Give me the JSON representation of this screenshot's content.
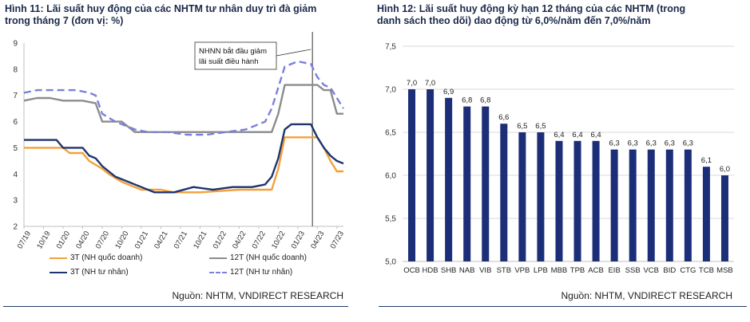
{
  "figure_left": {
    "title_line1": "Hình 11: Lãi suất huy động của các NHTM tư nhân duy trì đà giảm",
    "title_line2": "trong tháng 7 (đơn vị: %)",
    "source": "Nguồn: NHTM, VNDIRECT RESEARCH",
    "annotation_line1": "NHNN bắt đầu giảm",
    "annotation_line2": "lãi suất điều hành"
  },
  "figure_right": {
    "title_line1": "Hình 12: Lãi suất huy động kỳ hạn 12 tháng của các NHTM  (trong",
    "title_line2": "danh sách theo dõi) dao động từ 6,0%/năm đến 7,0%/năm",
    "source": "Nguồn: NHTM, VNDIRECT RESEARCH"
  },
  "colors": {
    "orange": "#f4a03a",
    "gray": "#8c8c8c",
    "navy": "#1d3470",
    "dashed_blue": "#7b7fdc",
    "bar": "#1d2e78",
    "grid": "#d9d9d9",
    "title": "#1b2a4a"
  },
  "chart_data": [
    {
      "type": "line",
      "x_ticks": [
        "07/19",
        "10/19",
        "01/20",
        "04/20",
        "07/20",
        "10/20",
        "01/21",
        "04/21",
        "07/21",
        "10/21",
        "01/22",
        "04/22",
        "07/22",
        "10/22",
        "01/23",
        "04/23",
        "07/23"
      ],
      "x_start": "07/19",
      "x_end": "08/23",
      "ylim": [
        2,
        9
      ],
      "yticks": [
        2,
        3,
        4,
        5,
        6,
        7,
        8,
        9
      ],
      "grid": false,
      "event_marker": "03/23",
      "legend_position": "bottom",
      "series": [
        {
          "name": "3T (NH quốc doanh)",
          "style": "solid",
          "color": "orange",
          "points": [
            [
              "07/19",
              5.0
            ],
            [
              "01/20",
              5.0
            ],
            [
              "02/20",
              4.8
            ],
            [
              "04/20",
              4.8
            ],
            [
              "05/20",
              4.5
            ],
            [
              "07/20",
              4.2
            ],
            [
              "08/20",
              4.0
            ],
            [
              "10/20",
              3.7
            ],
            [
              "12/20",
              3.5
            ],
            [
              "01/21",
              3.4
            ],
            [
              "04/21",
              3.4
            ],
            [
              "06/21",
              3.3
            ],
            [
              "10/21",
              3.3
            ],
            [
              "04/22",
              3.4
            ],
            [
              "09/22",
              3.4
            ],
            [
              "10/22",
              4.2
            ],
            [
              "11/22",
              5.4
            ],
            [
              "03/23",
              5.4
            ],
            [
              "04/23",
              5.4
            ],
            [
              "05/23",
              5.0
            ],
            [
              "06/23",
              4.5
            ],
            [
              "07/23",
              4.1
            ],
            [
              "08/23",
              4.1
            ]
          ]
        },
        {
          "name": "12T (NH quốc doanh)",
          "style": "solid",
          "color": "gray",
          "points": [
            [
              "07/19",
              6.8
            ],
            [
              "09/19",
              6.9
            ],
            [
              "11/19",
              6.9
            ],
            [
              "01/20",
              6.8
            ],
            [
              "04/20",
              6.8
            ],
            [
              "06/20",
              6.7
            ],
            [
              "07/20",
              6.0
            ],
            [
              "10/20",
              6.0
            ],
            [
              "12/20",
              5.6
            ],
            [
              "04/21",
              5.6
            ],
            [
              "07/21",
              5.6
            ],
            [
              "10/21",
              5.6
            ],
            [
              "04/22",
              5.6
            ],
            [
              "09/22",
              5.6
            ],
            [
              "10/22",
              6.3
            ],
            [
              "11/22",
              7.4
            ],
            [
              "02/23",
              7.4
            ],
            [
              "04/23",
              7.4
            ],
            [
              "05/23",
              7.2
            ],
            [
              "06/23",
              7.2
            ],
            [
              "07/23",
              6.3
            ],
            [
              "08/23",
              6.3
            ]
          ]
        },
        {
          "name": "3T (NH tư nhân)",
          "style": "solid",
          "color": "navy",
          "points": [
            [
              "07/19",
              5.3
            ],
            [
              "10/19",
              5.3
            ],
            [
              "12/19",
              5.3
            ],
            [
              "01/20",
              5.0
            ],
            [
              "04/20",
              5.0
            ],
            [
              "05/20",
              4.7
            ],
            [
              "06/20",
              4.6
            ],
            [
              "07/20",
              4.3
            ],
            [
              "08/20",
              4.1
            ],
            [
              "09/20",
              3.9
            ],
            [
              "11/20",
              3.7
            ],
            [
              "01/21",
              3.5
            ],
            [
              "03/21",
              3.3
            ],
            [
              "06/21",
              3.3
            ],
            [
              "09/21",
              3.5
            ],
            [
              "12/21",
              3.4
            ],
            [
              "03/22",
              3.5
            ],
            [
              "06/22",
              3.5
            ],
            [
              "08/22",
              3.6
            ],
            [
              "09/22",
              3.9
            ],
            [
              "10/22",
              4.6
            ],
            [
              "11/22",
              5.7
            ],
            [
              "12/22",
              5.9
            ],
            [
              "02/23",
              5.9
            ],
            [
              "03/23",
              5.9
            ],
            [
              "04/23",
              5.4
            ],
            [
              "05/23",
              5.0
            ],
            [
              "06/23",
              4.7
            ],
            [
              "07/23",
              4.5
            ],
            [
              "08/23",
              4.4
            ]
          ]
        },
        {
          "name": "12T (NH tư nhân)",
          "style": "dashed",
          "color": "dashed_blue",
          "points": [
            [
              "07/19",
              7.1
            ],
            [
              "09/19",
              7.2
            ],
            [
              "11/19",
              7.2
            ],
            [
              "01/20",
              7.2
            ],
            [
              "03/20",
              7.2
            ],
            [
              "05/20",
              7.1
            ],
            [
              "06/20",
              7.0
            ],
            [
              "07/20",
              6.3
            ],
            [
              "09/20",
              6.0
            ],
            [
              "11/20",
              5.8
            ],
            [
              "12/20",
              5.7
            ],
            [
              "02/21",
              5.6
            ],
            [
              "05/21",
              5.6
            ],
            [
              "08/21",
              5.5
            ],
            [
              "11/21",
              5.5
            ],
            [
              "02/22",
              5.6
            ],
            [
              "05/22",
              5.7
            ],
            [
              "08/22",
              6.0
            ],
            [
              "09/22",
              6.5
            ],
            [
              "10/22",
              7.3
            ],
            [
              "11/22",
              8.1
            ],
            [
              "01/23",
              8.3
            ],
            [
              "03/23",
              8.2
            ],
            [
              "04/23",
              7.7
            ],
            [
              "05/23",
              7.4
            ],
            [
              "06/23",
              7.3
            ],
            [
              "07/23",
              6.9
            ],
            [
              "08/23",
              6.5
            ]
          ]
        }
      ]
    },
    {
      "type": "bar",
      "categories": [
        "OCB",
        "HDB",
        "SHB",
        "NAB",
        "VIB",
        "STB",
        "VPB",
        "LPB",
        "MBB",
        "TPB",
        "ACB",
        "EIB",
        "SSB",
        "VCB",
        "BID",
        "CTG",
        "TCB",
        "MSB"
      ],
      "values": [
        7.0,
        7.0,
        6.9,
        6.8,
        6.8,
        6.6,
        6.5,
        6.5,
        6.4,
        6.4,
        6.4,
        6.3,
        6.3,
        6.3,
        6.3,
        6.3,
        6.1,
        6.0
      ],
      "data_labels": [
        "7,0",
        "7,0",
        "6,9",
        "6,8",
        "6,8",
        "6,6",
        "6,5",
        "6,5",
        "6,4",
        "6,4",
        "6,4",
        "6,3",
        "6,3",
        "6,3",
        "6,3",
        "6,3",
        "6,1",
        "6,0"
      ],
      "ylim": [
        5.0,
        7.5
      ],
      "yticks": [
        5.0,
        5.5,
        6.0,
        6.5,
        7.0,
        7.5
      ],
      "ytick_labels": [
        "5,0",
        "5,5",
        "6,0",
        "6,5",
        "7,0",
        "7,5"
      ],
      "grid": true
    }
  ]
}
